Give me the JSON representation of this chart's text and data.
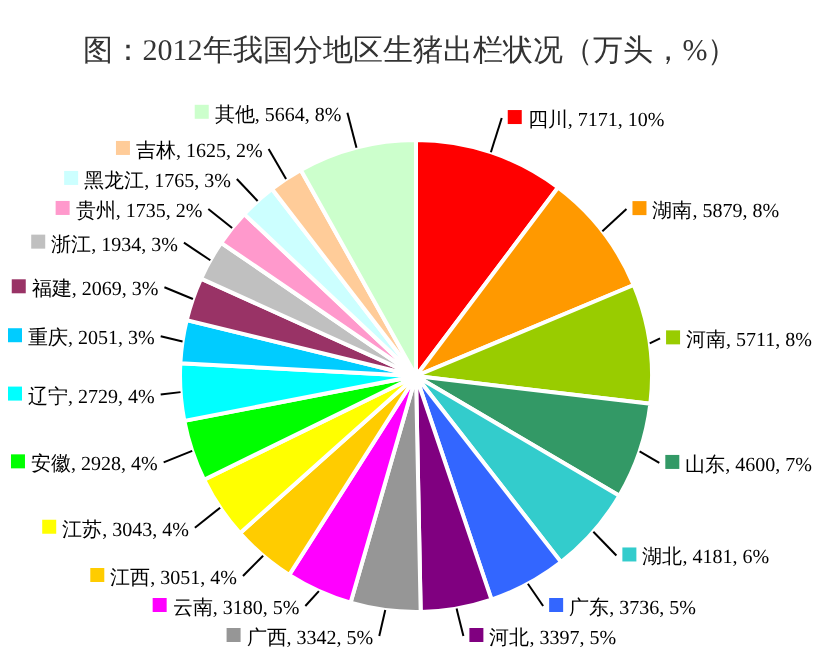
{
  "chart_data": {
    "type": "pie",
    "legend": "right",
    "title": "图：2012年我国分地区生猪出栏状况（万头，%）",
    "categories": [
      "四川",
      "湖南",
      "河南",
      "山东",
      "湖北",
      "广东",
      "河北",
      "广西",
      "云南",
      "江西",
      "江苏",
      "安徽",
      "辽宁",
      "重庆",
      "福建",
      "浙江",
      "贵州",
      "黑龙江",
      "吉林",
      "其他"
    ],
    "values": [
      7171,
      5879,
      5711,
      4600,
      4181,
      3736,
      3397,
      3342,
      3180,
      3051,
      3043,
      2928,
      2729,
      2051,
      2069,
      1934,
      1735,
      1765,
      1625,
      5664
    ],
    "value_labels": [
      "7171, 10%",
      "5879, 8%",
      "5711, 8%",
      "4600, 7%",
      "4181, 6%",
      "3736, 5%",
      "3397, 5%",
      "3342, 5%",
      "3180, 5%",
      "3051, 4%",
      "3043, 4%",
      "2928, 4%",
      "2729, 4%",
      "2051, 3%",
      "2069, 3%",
      "1934, 3%",
      "1735, 2%",
      "1765, 3%",
      "1625, 2%",
      "5664, 8%"
    ],
    "colors": [
      "#ff0000",
      "#ff9900",
      "#99cc00",
      "#339966",
      "#33cccc",
      "#3366ff",
      "#800080",
      "#969696",
      "#ff00ff",
      "#ffcc00",
      "#ffff00",
      "#00ff00",
      "#00ffff",
      "#00ccff",
      "#993366",
      "#c0c0c0",
      "#ff99cc",
      "#ccffff",
      "#ffcc99",
      "#ccffcc"
    ]
  }
}
